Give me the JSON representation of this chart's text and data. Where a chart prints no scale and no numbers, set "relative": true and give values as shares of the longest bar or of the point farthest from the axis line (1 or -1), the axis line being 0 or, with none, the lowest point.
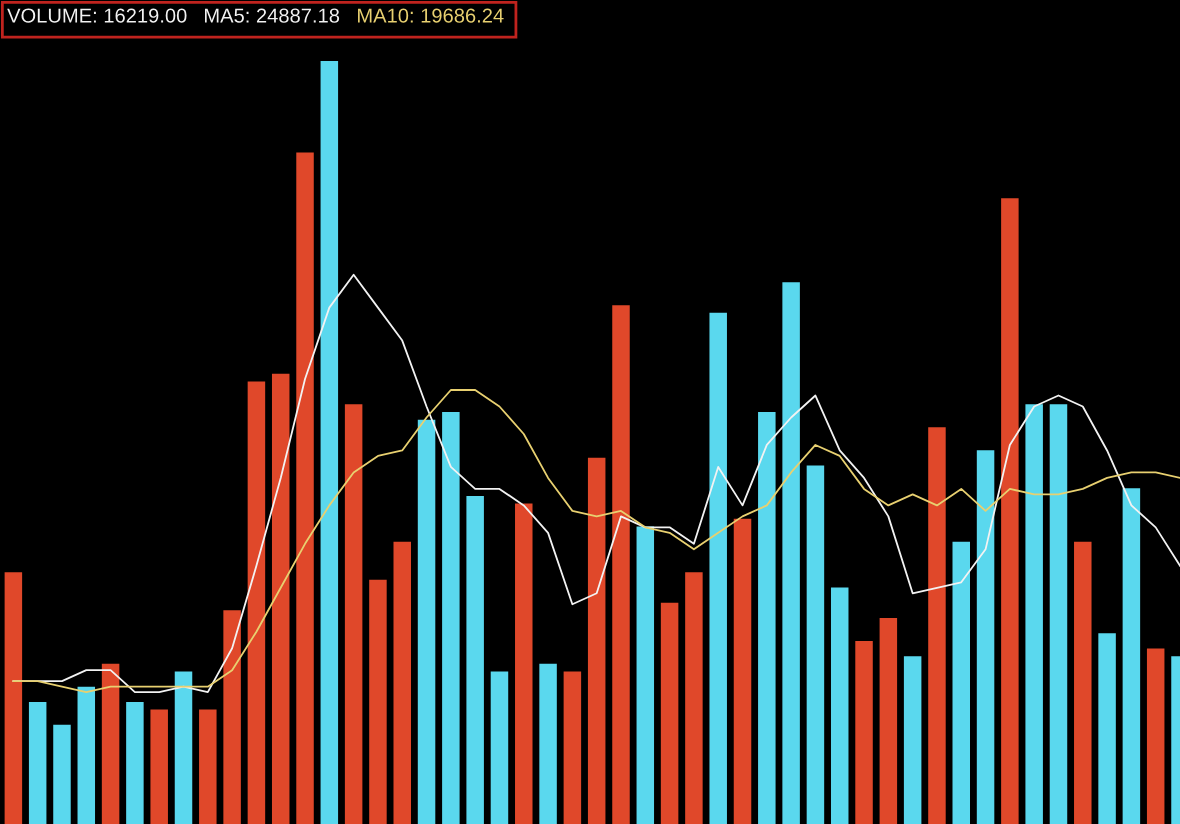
{
  "chart_data": [
    {
      "type": "bar",
      "relative": true,
      "title": "VOLUME: 16219.00",
      "categories": [
        null,
        null,
        null,
        null,
        null,
        null,
        null,
        null,
        null,
        null,
        null,
        null,
        null,
        null,
        null,
        null,
        null,
        null,
        null,
        null,
        null,
        null,
        null,
        null,
        null,
        null,
        null,
        null,
        null,
        null,
        null,
        null,
        null,
        null,
        null,
        null,
        null,
        null,
        null,
        null,
        null,
        null,
        null,
        null,
        null,
        null,
        null,
        null,
        null
      ],
      "values": [
        0.33,
        0.16,
        0.13,
        0.18,
        0.21,
        0.16,
        0.15,
        0.2,
        0.15,
        0.28,
        0.58,
        0.59,
        0.88,
        1,
        0.55,
        0.32,
        0.37,
        0.53,
        0.54,
        0.43,
        0.2,
        0.42,
        0.21,
        0.2,
        0.48,
        0.68,
        0.39,
        0.29,
        0.33,
        0.67,
        0.4,
        0.54,
        0.71,
        0.47,
        0.31,
        0.24,
        0.27,
        0.22,
        0.52,
        0.37,
        0.49,
        0.82,
        0.55,
        0.55,
        0.37,
        0.25,
        0.44,
        0.23,
        0.22
      ],
      "colors": [
        "#e0482a",
        "#5ad8ee",
        "#5ad8ee",
        "#5ad8ee",
        "#e0482a",
        "#5ad8ee",
        "#e0482a",
        "#5ad8ee",
        "#e0482a",
        "#e0482a",
        "#e0482a",
        "#e0482a",
        "#e0482a",
        "#5ad8ee",
        "#e0482a",
        "#e0482a",
        "#e0482a",
        "#5ad8ee",
        "#5ad8ee",
        "#5ad8ee",
        "#5ad8ee",
        "#e0482a",
        "#5ad8ee",
        "#e0482a",
        "#e0482a",
        "#e0482a",
        "#5ad8ee",
        "#e0482a",
        "#e0482a",
        "#5ad8ee",
        "#e0482a",
        "#5ad8ee",
        "#5ad8ee",
        "#5ad8ee",
        "#5ad8ee",
        "#e0482a",
        "#e0482a",
        "#5ad8ee",
        "#e0482a",
        "#5ad8ee",
        "#5ad8ee",
        "#e0482a",
        "#5ad8ee",
        "#5ad8ee",
        "#e0482a",
        "#5ad8ee",
        "#5ad8ee",
        "#e0482a",
        "#5ad8ee"
      ]
    },
    {
      "type": "line",
      "relative": true,
      "legend": false,
      "marker": "none",
      "line_style": "solid",
      "categories": [
        null,
        null,
        null,
        null,
        null,
        null,
        null,
        null,
        null,
        null,
        null,
        null,
        null,
        null,
        null,
        null,
        null,
        null,
        null,
        null,
        null,
        null,
        null,
        null,
        null,
        null,
        null,
        null,
        null,
        null,
        null,
        null,
        null,
        null,
        null,
        null,
        null,
        null,
        null,
        null,
        null,
        null,
        null,
        null,
        null,
        null,
        null,
        null,
        null
      ],
      "series": [
        {
          "name": "MA5: 24887.18",
          "color": "#f2f2f2",
          "values": [
            0.26,
            0.26,
            0.26,
            0.28,
            0.28,
            0.24,
            0.24,
            0.25,
            0.24,
            0.32,
            0.47,
            0.63,
            0.81,
            0.94,
            1,
            0.94,
            0.88,
            0.76,
            0.65,
            0.61,
            0.61,
            0.58,
            0.53,
            0.4,
            0.42,
            0.56,
            0.54,
            0.54,
            0.51,
            0.65,
            0.58,
            0.69,
            0.74,
            0.78,
            0.68,
            0.63,
            0.56,
            0.42,
            0.43,
            0.44,
            0.5,
            0.69,
            0.76,
            0.78,
            0.76,
            0.68,
            0.58,
            0.54,
            0.47
          ]
        },
        {
          "name": "MA10: 19686.24",
          "color": "#e8d070",
          "values": [
            0.26,
            0.26,
            0.25,
            0.24,
            0.25,
            0.25,
            0.25,
            0.25,
            0.25,
            0.28,
            0.35,
            0.43,
            0.51,
            0.58,
            0.64,
            0.67,
            0.68,
            0.74,
            0.79,
            0.79,
            0.76,
            0.71,
            0.63,
            0.57,
            0.56,
            0.57,
            0.54,
            0.53,
            0.5,
            0.53,
            0.56,
            0.58,
            0.64,
            0.69,
            0.67,
            0.61,
            0.58,
            0.6,
            0.58,
            0.61,
            0.57,
            0.61,
            0.6,
            0.6,
            0.61,
            0.63,
            0.64,
            0.64,
            0.63
          ]
        }
      ]
    }
  ]
}
